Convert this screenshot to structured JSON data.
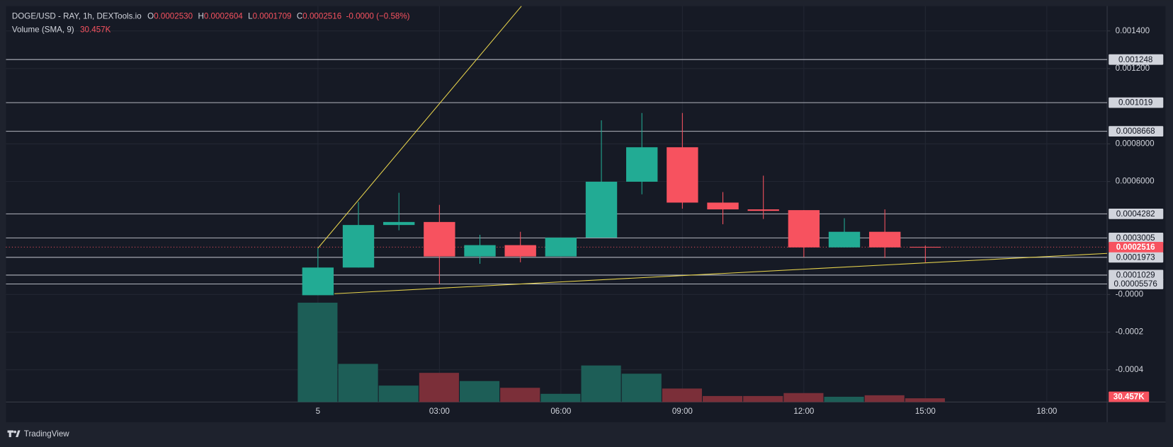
{
  "chart_data": {
    "type": "candlestick",
    "legend": {
      "symbol": "DOGE/USD - RAY, 1h, DEXTools.io",
      "items": [
        {
          "key": "O",
          "value": "0.0002530"
        },
        {
          "key": "H",
          "value": "0.0002604"
        },
        {
          "key": "L",
          "value": "0.0001709"
        },
        {
          "key": "C",
          "value": "0.0002516"
        }
      ],
      "change": "-0.0000 (−0.58%)"
    },
    "categories": [
      "5",
      null,
      null,
      "03:00",
      null,
      null,
      "06:00",
      null,
      null,
      "09:00",
      null,
      null,
      "12:00",
      null,
      null,
      "15:00",
      null,
      null,
      "18:00",
      null
    ],
    "open": [
      -4e-06,
      0.000143,
      0.000369,
      0.000385,
      0.000202,
      0.000262,
      0.000202,
      0.000302,
      0.000599,
      0.000782,
      0.000488,
      0.000452,
      0.000448,
      0.00025,
      0.000333,
      0.000253,
      null,
      null,
      null,
      null
    ],
    "high": [
      0.000246,
      0.000492,
      0.00054,
      0.000476,
      0.000317,
      0.000333,
      0.000302,
      0.000925,
      0.000964,
      0.000964,
      0.000544,
      0.000631,
      0.000448,
      0.000405,
      0.000452,
      0.0002604,
      null,
      null,
      null,
      null
    ],
    "low": [
      -4e-06,
      0.000143,
      0.000341,
      5.6e-05,
      0.000163,
      0.000171,
      0.000202,
      0.000302,
      0.000532,
      0.000456,
      0.000373,
      0.000401,
      0.000198,
      0.00025,
      0.000194,
      0.0001709,
      null,
      null,
      null,
      null
    ],
    "close": [
      0.000143,
      0.000369,
      0.000385,
      0.000202,
      0.000262,
      0.000202,
      0.000302,
      0.000599,
      0.000782,
      0.000488,
      0.000452,
      0.000444,
      0.00025,
      0.000333,
      0.00025,
      0.0002516,
      null,
      null,
      null,
      null
    ],
    "up_color": "#22ab94",
    "down_color": "#f7525f",
    "volume": {
      "name": "Volume (SMA, 9)",
      "values": [
        810000,
        311000,
        134000,
        238000,
        171000,
        116000,
        67000,
        298000,
        231000,
        110000,
        49000,
        49000,
        73000,
        43000,
        55000,
        30457,
        null,
        null,
        null,
        null
      ],
      "value_labels": [
        null,
        null,
        null,
        null,
        null,
        null,
        null,
        null,
        null,
        null,
        null,
        null,
        null,
        null,
        null,
        "30.457K",
        null,
        null,
        null,
        null
      ],
      "up_color": "#1d5e57",
      "down_color": "#7b2f39"
    },
    "ylim": [
      -0.0005714,
      0.0015317
    ],
    "yticks": [
      {
        "value": 0.0014,
        "label": "0.001400"
      },
      {
        "value": 0.0012,
        "label": "0.001200"
      },
      {
        "value": 0.0008,
        "label": "0.0008000"
      },
      {
        "value": 0.0006,
        "label": "0.0006000"
      },
      {
        "value": 0,
        "label": "-0.0000"
      },
      {
        "value": -0.0002,
        "label": "-0.0002"
      },
      {
        "value": -0.0004,
        "label": "-0.0004"
      }
    ],
    "hlines": [
      0.001248,
      0.001019,
      0.0008668,
      0.0004282,
      0.0003005,
      0.0001973,
      0.0001029,
      5.576e-05
    ],
    "grid": true,
    "watermark": "TradingView"
  }
}
